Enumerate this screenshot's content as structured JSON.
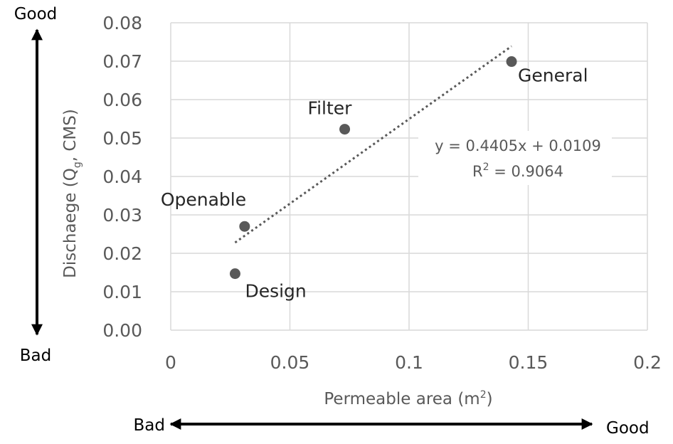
{
  "chart_data": {
    "type": "scatter",
    "xlabel_text": "Permeable area (m",
    "xlabel_sup": "2",
    "xlabel_end": ")",
    "ylabel_pre": "Dischaege (Q",
    "ylabel_sub": "g",
    "ylabel_post": ", CMS)",
    "xlim": [
      0,
      0.2
    ],
    "ylim": [
      0,
      0.08
    ],
    "x_ticks": [
      "0",
      "0.05",
      "0.1",
      "0.15",
      "0.2"
    ],
    "y_ticks": [
      "0.00",
      "0.01",
      "0.02",
      "0.03",
      "0.04",
      "0.05",
      "0.06",
      "0.07",
      "0.08"
    ],
    "grid": true,
    "points": [
      {
        "label": "Design",
        "x": 0.027,
        "y": 0.0147
      },
      {
        "label": "Openable",
        "x": 0.031,
        "y": 0.027
      },
      {
        "label": "Filter",
        "x": 0.073,
        "y": 0.0523
      },
      {
        "label": "General",
        "x": 0.143,
        "y": 0.0699
      }
    ],
    "trendline": {
      "style": "dotted",
      "slope": 0.4405,
      "intercept": 0.0109,
      "x_range": [
        0.027,
        0.143
      ],
      "equation": "y = 0.4405x + 0.0109",
      "r2_pre": "R",
      "r2_sup": "2",
      "r2_post": " = 0.9064"
    },
    "colors": {
      "point": "#595959",
      "grid": "#d9d9d9",
      "trend": "#595959"
    }
  },
  "annotations": {
    "y_good": "Good",
    "y_bad": "Bad",
    "x_bad": "Bad",
    "x_good": "Good"
  }
}
